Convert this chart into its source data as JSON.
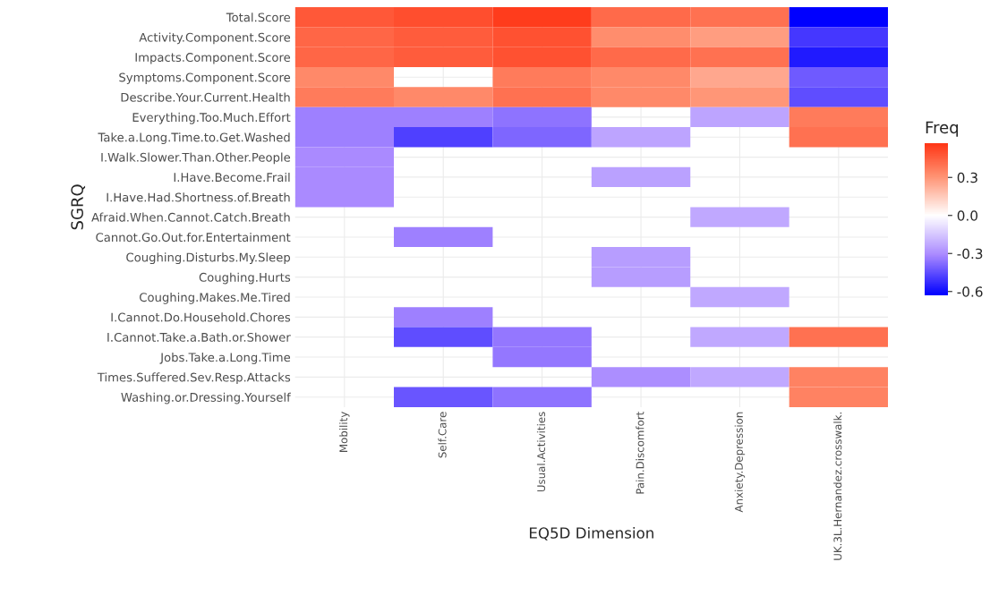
{
  "chart_data": {
    "type": "heatmap",
    "xlabel": "EQ5D Dimension",
    "ylabel": "SGRQ",
    "clabel": "Freq",
    "categories": [
      "Mobility",
      "Self.Care",
      "Usual.Activities",
      "Pain.Discomfort",
      "Anxiety.Depression",
      "UK.3L.Hernandez.crosswalk."
    ],
    "y_categories": [
      "Total.Score",
      "Activity.Component.Score",
      "Impacts.Component.Score",
      "Symptoms.Component.Score",
      "Describe.Your.Current.Health",
      "Everything.Too.Much.Effort",
      "Take.a.Long.Time.to.Get.Washed",
      "I.Walk.Slower.Than.Other.People",
      "I.Have.Become.Frail",
      "I.Have.Had.Shortness.of.Breath",
      "Afraid.When.Cannot.Catch.Breath",
      "Cannot.Go.Out.for.Entertainment",
      "Coughing.Disturbs.My.Sleep",
      "Coughing.Hurts",
      "Coughing.Makes.Me.Tired",
      "I.Cannot.Do.Household.Chores",
      "I.Cannot.Take.a.Bath.or.Shower",
      "Jobs.Take.a.Long.Time",
      "Times.Suffered.Sev.Resp.Attacks",
      "Washing.or.Dressing.Yourself"
    ],
    "cells": [
      [
        0.47,
        0.5,
        0.55,
        0.42,
        0.4,
        -0.63
      ],
      [
        0.43,
        0.46,
        0.49,
        0.32,
        0.28,
        -0.5
      ],
      [
        0.43,
        0.46,
        0.49,
        0.42,
        0.4,
        -0.57
      ],
      [
        0.33,
        null,
        0.37,
        0.33,
        0.25,
        -0.42
      ],
      [
        0.37,
        0.33,
        0.4,
        0.33,
        0.3,
        -0.45
      ],
      [
        -0.33,
        -0.33,
        -0.36,
        null,
        -0.24,
        0.37
      ],
      [
        -0.33,
        -0.48,
        -0.39,
        -0.24,
        null,
        0.4
      ],
      [
        -0.31,
        null,
        null,
        null,
        null,
        null
      ],
      [
        -0.31,
        null,
        null,
        -0.25,
        null,
        null
      ],
      [
        -0.31,
        null,
        null,
        null,
        null,
        null
      ],
      [
        null,
        null,
        null,
        null,
        -0.23,
        null
      ],
      [
        null,
        -0.33,
        null,
        null,
        null,
        null
      ],
      [
        null,
        null,
        null,
        -0.26,
        null,
        null
      ],
      [
        null,
        null,
        null,
        -0.26,
        null,
        null
      ],
      [
        null,
        null,
        null,
        null,
        -0.23,
        null
      ],
      [
        null,
        -0.33,
        null,
        null,
        null,
        null
      ],
      [
        null,
        -0.45,
        -0.35,
        null,
        -0.23,
        0.4
      ],
      [
        null,
        null,
        -0.35,
        null,
        null,
        null
      ],
      [
        null,
        null,
        null,
        -0.3,
        -0.23,
        0.35
      ],
      [
        null,
        -0.43,
        -0.36,
        null,
        null,
        0.35
      ]
    ],
    "clim": [
      -0.63,
      0.57
    ],
    "cticks": [
      {
        "value": 0.3,
        "label": "0.3"
      },
      {
        "value": 0.0,
        "label": "0.0"
      },
      {
        "value": -0.3,
        "label": "-0.3"
      },
      {
        "value": -0.6,
        "label": "-0.6"
      }
    ],
    "grid": true
  }
}
